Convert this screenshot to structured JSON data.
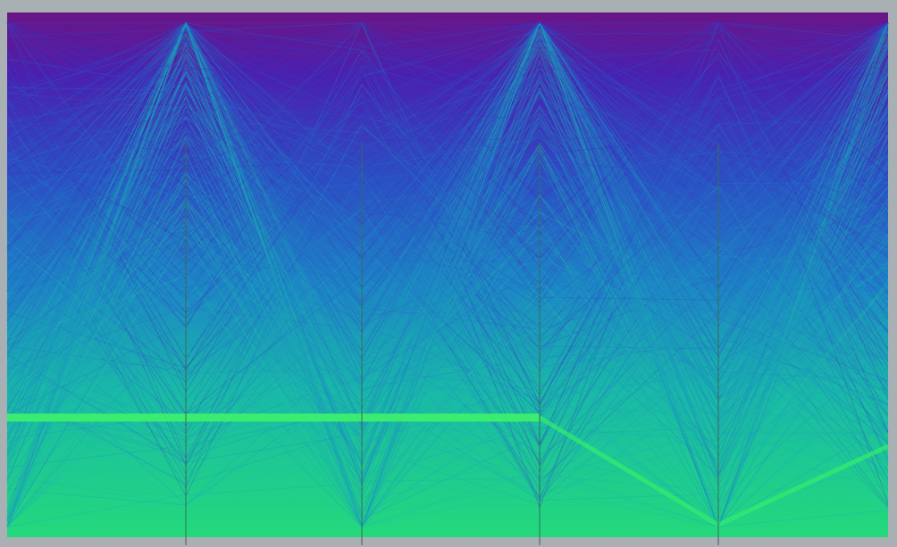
{
  "chart_data": {
    "type": "parallel-coordinates",
    "title": "",
    "xlabel": "",
    "ylabel": "",
    "axis_count": 6,
    "axes": [
      "",
      "",
      "",
      "",
      "",
      ""
    ],
    "tick_labels": [],
    "legend": "none",
    "grid": false,
    "series_color_scale": {
      "top": "#8a1a7a",
      "upper": "#3a2fc0",
      "middle": "#1fa4c8",
      "lower": "#20d27a",
      "bottom": "#32f06a"
    },
    "colors": {
      "frame": "#a8b0b4",
      "axis_line": "#3b6a5a",
      "highlight_band": "#3ef26a"
    }
  }
}
